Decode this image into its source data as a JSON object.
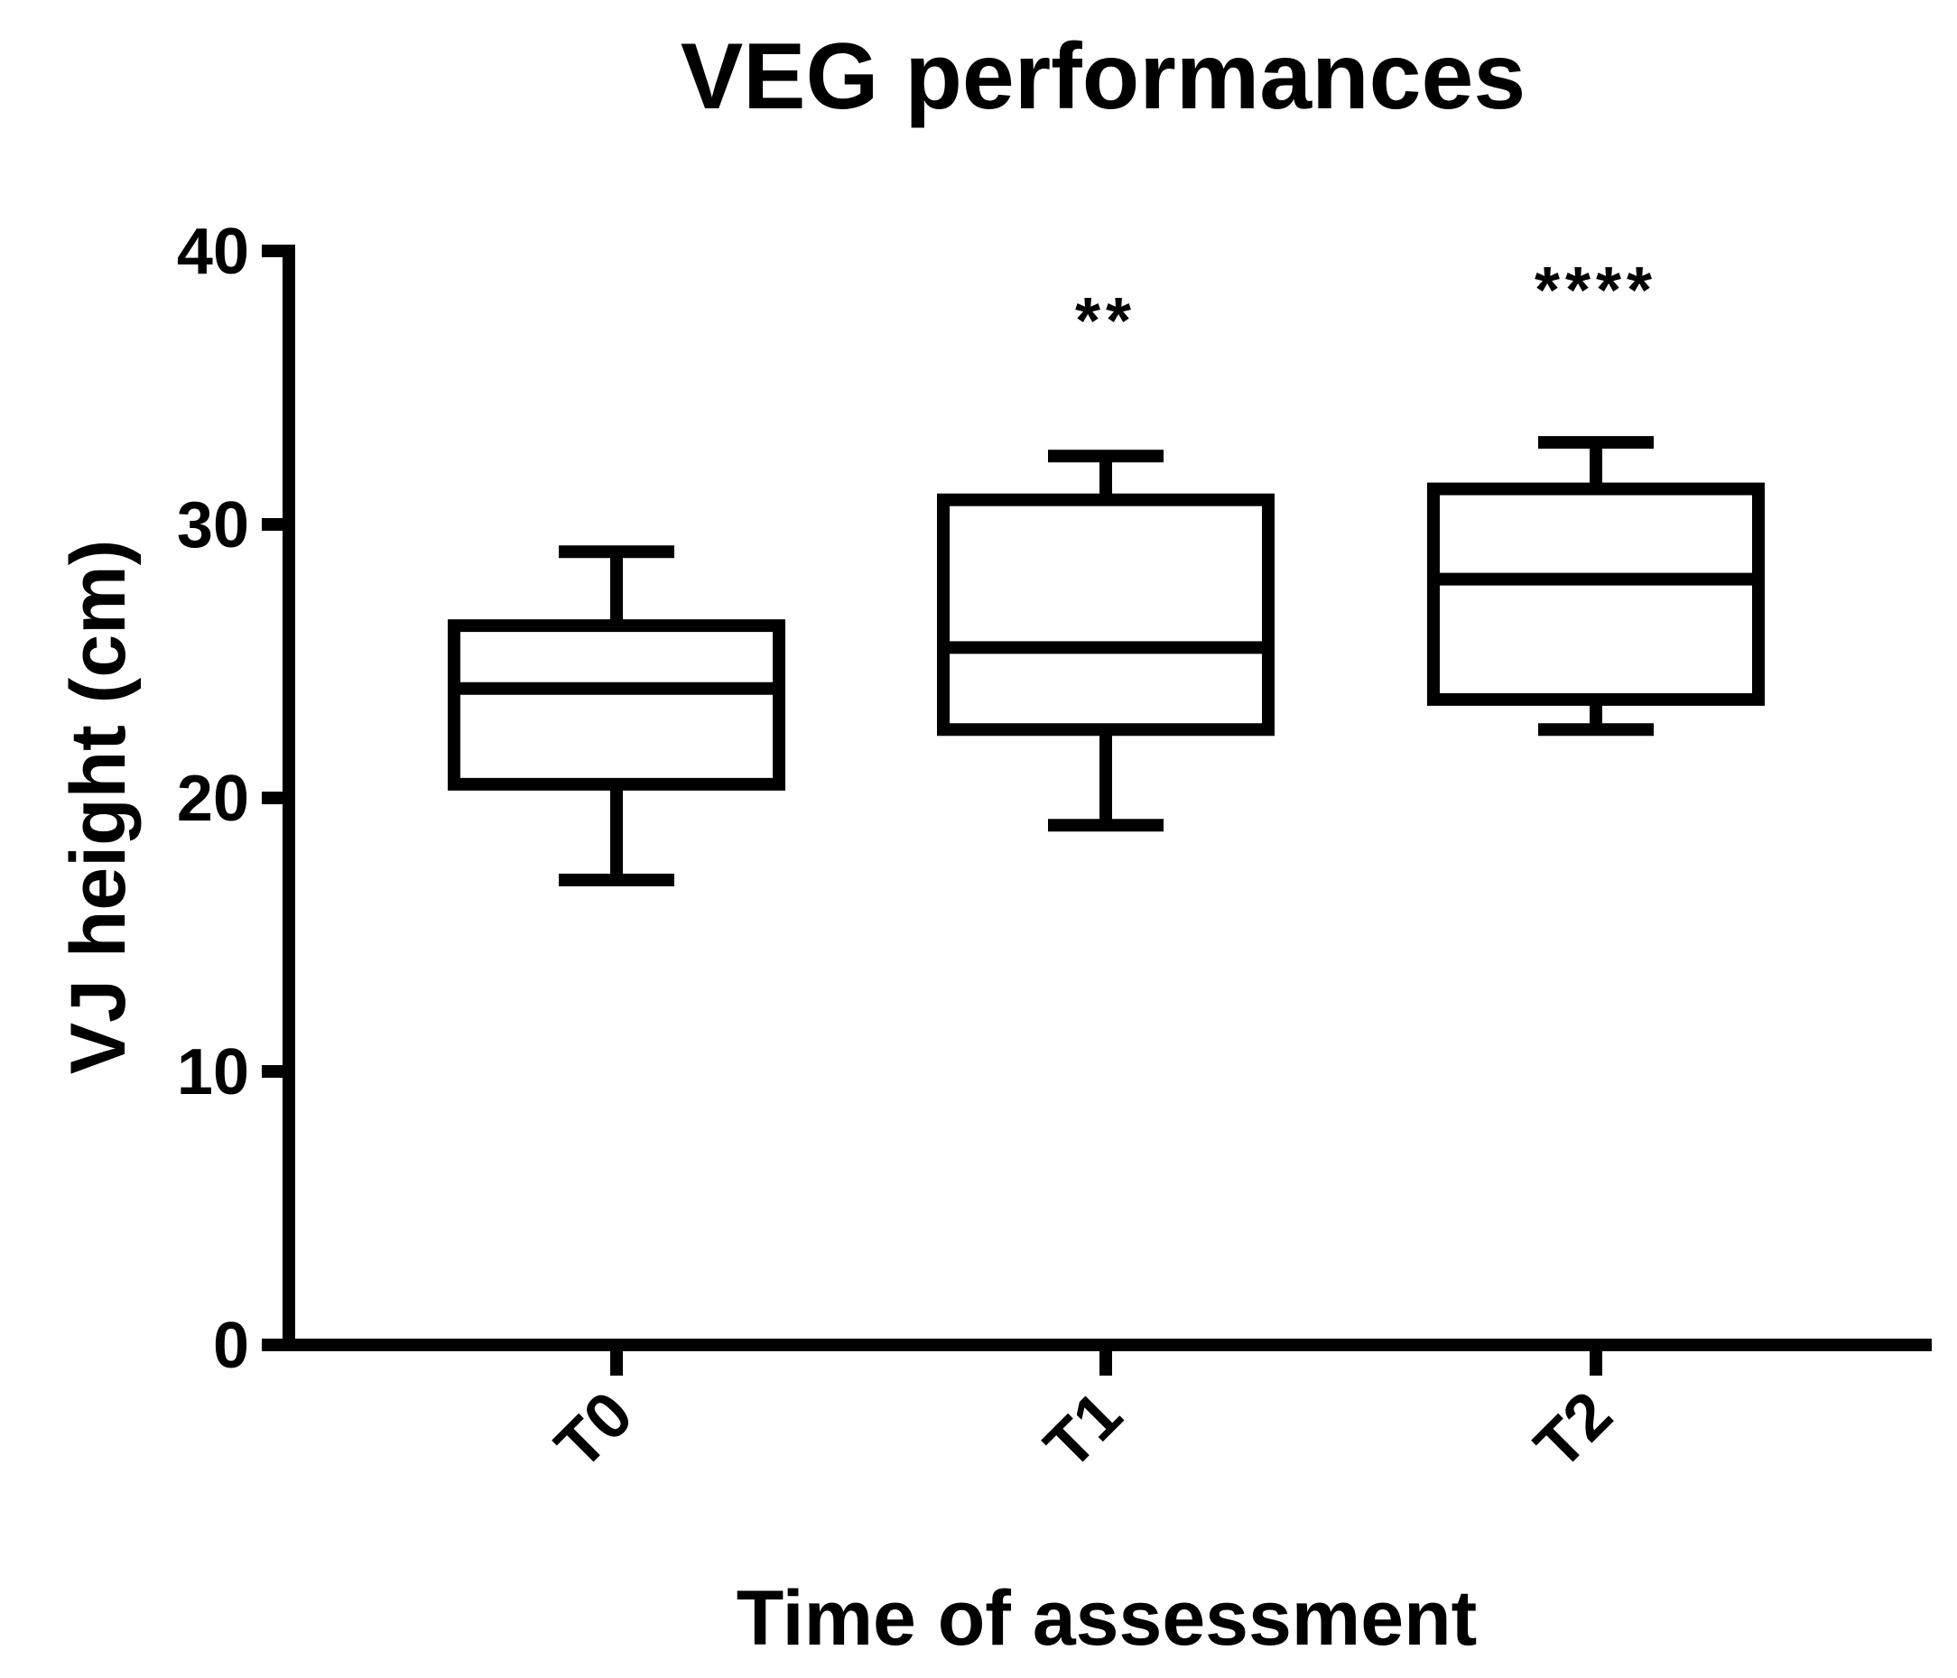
{
  "chart_data": {
    "type": "boxplot",
    "title": "VEG performances",
    "xlabel": "Time of assessment",
    "ylabel": "VJ height (cm)",
    "ylim": [
      0,
      40
    ],
    "yticks": [
      0,
      10,
      20,
      30,
      40
    ],
    "categories": [
      "T0",
      "T1",
      "T2"
    ],
    "boxes": [
      {
        "category": "T0",
        "min": 17,
        "q1": 20.5,
        "median": 24,
        "q3": 26.3,
        "max": 29,
        "significance": ""
      },
      {
        "category": "T1",
        "min": 19,
        "q1": 22.5,
        "median": 25.5,
        "q3": 30.9,
        "max": 32.5,
        "significance": "**"
      },
      {
        "category": "T2",
        "min": 22.5,
        "q1": 23.6,
        "median": 28,
        "q3": 31.3,
        "max": 33,
        "significance": "****"
      }
    ],
    "colors": {
      "stroke": "#000000",
      "fill": "#ffffff"
    }
  }
}
